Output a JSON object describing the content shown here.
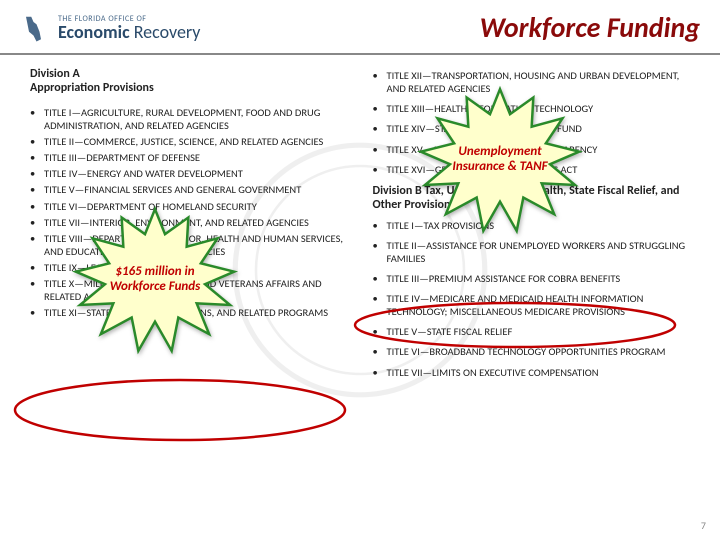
{
  "header": {
    "logo_small": "THE FLORIDA OFFICE OF",
    "logo_main_1": "Economic",
    "logo_main_2": "Recovery",
    "title": "Workforce Funding"
  },
  "left": {
    "heading": "Division A\nAppropriation Provisions",
    "items": [
      "TITLE I—AGRICULTURE, RURAL DEVELOPMENT, FOOD AND DRUG ADMINISTRATION, AND RELATED AGENCIES",
      "TITLE II—COMMERCE, JUSTICE, SCIENCE, AND RELATED AGENCIES",
      "TITLE III—DEPARTMENT OF DEFENSE",
      "TITLE IV—ENERGY AND WATER DEVELOPMENT",
      "TITLE V—FINANCIAL SERVICES AND GENERAL GOVERNMENT",
      "TITLE VI—DEPARTMENT OF HOMELAND SECURITY",
      "TITLE VII—INTERIOR, ENVIRONMENT, AND RELATED AGENCIES",
      "TITLE VIII—DEPARTMENTS OF LABOR, HEALTH AND HUMAN SERVICES, AND EDUCATION, AND RELATED AGENCIES",
      "TITLE IX—LEGISLATIVE BRANCH",
      "TITLE X—MILITARY CONSTRUCTION AND VETERANS AFFAIRS AND RELATED AGENCIES",
      "TITLE XI—STATE, FOREIGN OPERATIONS, AND RELATED PROGRAMS"
    ]
  },
  "right": {
    "top_items": [
      "TITLE XII—TRANSPORTATION, HOUSING AND URBAN DEVELOPMENT, AND RELATED AGENCIES",
      "TITLE XIII—HEALTH INFORMATION TECHNOLOGY",
      "TITLE XIV—STATE FISCAL STABILIZATION FUND",
      "TITLE XV—ACCOUNTABILITY AND TRANSPARENCY",
      "TITLE XVI—GENERAL PROVISIONS—THIS ACT"
    ],
    "heading_b": "Division B Tax, Unemployment, Health, State Fiscal Relief, and Other Provisions",
    "bottom_items": [
      "TITLE I—TAX PROVISIONS",
      "TITLE II—ASSISTANCE FOR UNEMPLOYED WORKERS AND STRUGGLING FAMILIES",
      "TITLE III—PREMIUM ASSISTANCE FOR COBRA BENEFITS",
      "TITLE IV—MEDICARE AND MEDICAID HEALTH INFORMATION TECHNOLOGY; MISCELLANEOUS MEDICARE PROVISIONS",
      "TITLE V—STATE FISCAL RELIEF",
      "TITLE VI—BROADBAND TECHNOLOGY OPPORTUNITIES PROGRAM",
      "TITLE VII—LIMITS ON EXECUTIVE COMPENSATION"
    ]
  },
  "stars": {
    "left_text": "$165 million in Workforce Funds",
    "right_text": "Unemployment Insurance & TANF"
  },
  "colors": {
    "title": "#8a0a0a",
    "star_fill": "#ffffcc",
    "star_stroke": "#2a8a2a",
    "star_text": "#c00000",
    "oval_stroke": "#c00000"
  },
  "page_number": "7"
}
